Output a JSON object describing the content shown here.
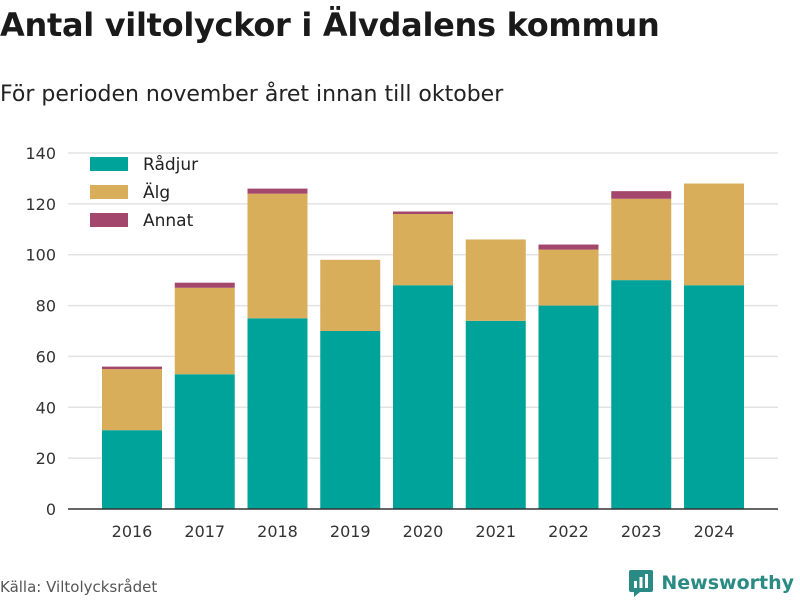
{
  "title": "Antal viltolyckor i Älvdalens kommun",
  "subtitle": "För perioden november året innan till oktober",
  "source": "Källa: Viltolycksrådet",
  "brand": {
    "name": "Newsworthy",
    "icon": "newsworthy-logo-icon",
    "color": "#2a8a84"
  },
  "chart_data": {
    "type": "bar",
    "stacked": true,
    "categories": [
      "2016",
      "2017",
      "2018",
      "2019",
      "2020",
      "2021",
      "2022",
      "2023",
      "2024"
    ],
    "series": [
      {
        "name": "Rådjur",
        "color": "#00a39a",
        "values": [
          31,
          53,
          75,
          70,
          88,
          74,
          80,
          90,
          88
        ]
      },
      {
        "name": "Älg",
        "color": "#d9ae5a",
        "values": [
          24,
          34,
          49,
          28,
          28,
          32,
          22,
          32,
          40
        ]
      },
      {
        "name": "Annat",
        "color": "#a3486c",
        "values": [
          1,
          2,
          2,
          0,
          1,
          0,
          2,
          3,
          0
        ]
      }
    ],
    "ylim": [
      0,
      140
    ],
    "yticks": [
      0,
      20,
      40,
      60,
      80,
      100,
      120,
      140
    ],
    "grid": true,
    "legend_position": "top-left"
  }
}
